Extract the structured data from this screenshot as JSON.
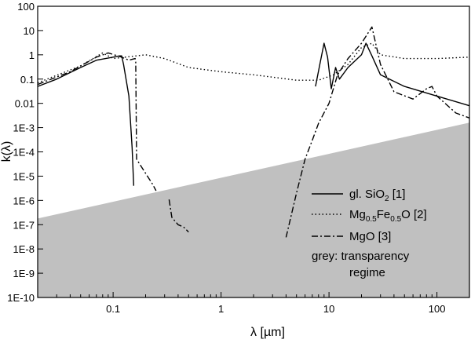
{
  "chart_data": {
    "type": "line",
    "xscale": "log",
    "yscale": "log",
    "xlim": [
      0.02,
      200
    ],
    "ylim": [
      1e-10,
      100
    ],
    "xlabel": "λ [µm]",
    "ylabel": "k(λ)",
    "x_ticks": [
      {
        "value": 0.1,
        "label": "0.1"
      },
      {
        "value": 1,
        "label": "1"
      },
      {
        "value": 10,
        "label": "10"
      },
      {
        "value": 100,
        "label": "100"
      }
    ],
    "y_ticks": [
      {
        "value": 100,
        "label": "100"
      },
      {
        "value": 10,
        "label": "10"
      },
      {
        "value": 1,
        "label": "1"
      },
      {
        "value": 0.1,
        "label": "0.1"
      },
      {
        "value": 0.01,
        "label": "0.01"
      },
      {
        "value": 0.001,
        "label": "1E-3"
      },
      {
        "value": 0.0001,
        "label": "1E-4"
      },
      {
        "value": 1e-05,
        "label": "1E-5"
      },
      {
        "value": 1e-06,
        "label": "1E-6"
      },
      {
        "value": 1e-07,
        "label": "1E-7"
      },
      {
        "value": 1e-08,
        "label": "1E-8"
      },
      {
        "value": 1e-09,
        "label": "1E-9"
      },
      {
        "value": 1e-10,
        "label": "1E-10"
      }
    ],
    "transparency_boundary": {
      "x": [
        0.02,
        200
      ],
      "y": [
        1.8e-07,
        0.0016
      ]
    },
    "series": [
      {
        "name": "gl. SiO2 [1]",
        "style": "solid",
        "segments": [
          [
            [
              0.02,
              0.05
            ],
            [
              0.03,
              0.1
            ],
            [
              0.05,
              0.3
            ],
            [
              0.07,
              0.6
            ],
            [
              0.1,
              0.8
            ],
            [
              0.115,
              0.9
            ],
            [
              0.12,
              0.9
            ],
            [
              0.125,
              0.4
            ],
            [
              0.14,
              0.02
            ],
            [
              0.15,
              0.00015
            ],
            [
              0.155,
              4e-06
            ]
          ],
          [
            [
              7.5,
              0.05
            ],
            [
              8.3,
              0.5
            ],
            [
              9.0,
              3.0
            ],
            [
              9.7,
              0.8
            ],
            [
              10.5,
              0.04
            ],
            [
              11.5,
              0.3
            ],
            [
              12.5,
              0.1
            ],
            [
              15,
              0.3
            ],
            [
              20,
              1.0
            ],
            [
              22,
              3.0
            ],
            [
              25,
              0.9
            ],
            [
              30,
              0.15
            ],
            [
              50,
              0.05
            ],
            [
              100,
              0.02
            ],
            [
              200,
              0.008
            ]
          ]
        ]
      },
      {
        "name": "Mg0.5Fe0.5O [2]",
        "style": "dotted",
        "segments": [
          [
            [
              0.02,
              0.07
            ],
            [
              0.05,
              0.35
            ],
            [
              0.08,
              1.2
            ],
            [
              0.1,
              0.7
            ],
            [
              0.2,
              1.0
            ],
            [
              0.3,
              0.7
            ],
            [
              0.5,
              0.3
            ],
            [
              1,
              0.2
            ],
            [
              2,
              0.15
            ],
            [
              3,
              0.12
            ],
            [
              5,
              0.09
            ],
            [
              8,
              0.09
            ],
            [
              11,
              0.15
            ],
            [
              15,
              0.4
            ],
            [
              20,
              2.0
            ],
            [
              25,
              3.0
            ],
            [
              30,
              1.0
            ],
            [
              50,
              0.7
            ],
            [
              100,
              0.7
            ],
            [
              200,
              0.8
            ]
          ]
        ]
      },
      {
        "name": "MgO [3]",
        "style": "dashdot",
        "segments": [
          [
            [
              0.02,
              0.06
            ],
            [
              0.04,
              0.2
            ],
            [
              0.07,
              0.8
            ],
            [
              0.09,
              1.2
            ],
            [
              0.12,
              0.8
            ],
            [
              0.14,
              0.6
            ],
            [
              0.16,
              0.7
            ],
            [
              0.162,
              0.5
            ],
            [
              0.165,
              5e-05
            ],
            [
              0.2,
              1.3e-05
            ],
            [
              0.23,
              5e-06
            ],
            [
              0.25,
              2.5e-06
            ]
          ],
          [
            [
              0.33,
              1.1e-06
            ],
            [
              0.35,
              2e-07
            ],
            [
              0.4,
              1e-07
            ],
            [
              0.45,
              8e-08
            ],
            [
              0.5,
              5e-08
            ]
          ],
          [
            [
              4.0,
              3e-08
            ],
            [
              5.0,
              2e-06
            ],
            [
              6.0,
              5e-05
            ],
            [
              7.0,
              0.0003
            ],
            [
              8.0,
              0.0015
            ],
            [
              10,
              0.01
            ],
            [
              12,
              0.15
            ],
            [
              15,
              0.7
            ],
            [
              20,
              3.0
            ],
            [
              25,
              14
            ],
            [
              30,
              0.4
            ],
            [
              40,
              0.03
            ],
            [
              60,
              0.015
            ],
            [
              80,
              0.04
            ],
            [
              90,
              0.05
            ],
            [
              100,
              0.02
            ],
            [
              150,
              0.004
            ],
            [
              200,
              0.0025
            ]
          ]
        ]
      }
    ],
    "legend": {
      "placement": "bottom-right",
      "entries": [
        {
          "style": "solid",
          "label_parts": [
            {
              "t": "gl. SiO",
              "sub": false
            },
            {
              "t": "2",
              "sub": true
            },
            {
              "t": " [1]",
              "sub": false
            }
          ]
        },
        {
          "style": "dotted",
          "label_parts": [
            {
              "t": "Mg",
              "sub": false
            },
            {
              "t": "0.5",
              "sub": true
            },
            {
              "t": "Fe",
              "sub": false
            },
            {
              "t": "0.5",
              "sub": true
            },
            {
              "t": "O [2]",
              "sub": false
            }
          ]
        },
        {
          "style": "dashdot",
          "label_parts": [
            {
              "t": "MgO [3]",
              "sub": false
            }
          ]
        }
      ],
      "note_lines": [
        "grey: transparency",
        "regime"
      ]
    }
  }
}
